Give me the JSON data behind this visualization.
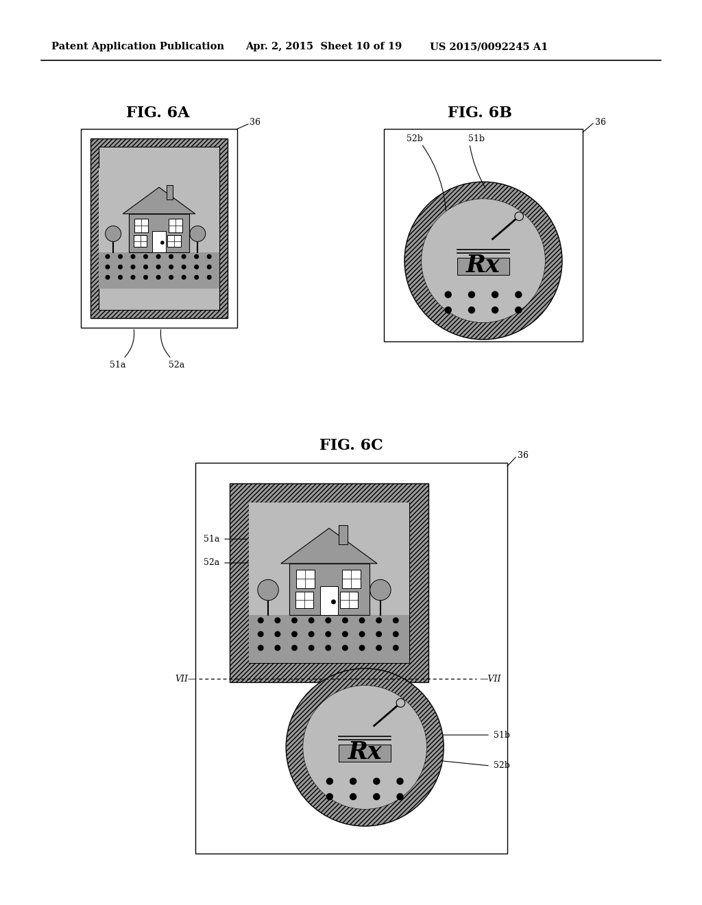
{
  "bg_color": "#ffffff",
  "header_left": "Patent Application Publication",
  "header_mid": "Apr. 2, 2015  Sheet 10 of 19",
  "header_right": "US 2015/0092245 A1",
  "fig6a_title": "FIG. 6A",
  "fig6b_title": "FIG. 6B",
  "fig6c_title": "FIG. 6C",
  "dark_gray": "#999999",
  "mid_gray": "#bbbbbb",
  "light_gray": "#d8d8d8",
  "white": "#ffffff",
  "black": "#000000",
  "hatch_gray": "#aaaaaa"
}
